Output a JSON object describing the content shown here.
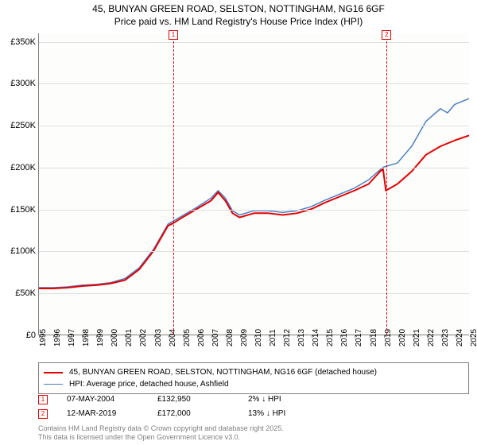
{
  "title": {
    "line1": "45, BUNYAN GREEN ROAD, SELSTON, NOTTINGHAM, NG16 6GF",
    "line2": "Price paid vs. HM Land Registry's House Price Index (HPI)",
    "fontsize": 12,
    "color": "#000000"
  },
  "chart": {
    "type": "line",
    "background_color": "#fdfdfb",
    "grid_color": "#e0e0e0",
    "axis_color": "#808080",
    "x": {
      "min": 1995,
      "max": 2025,
      "ticks": [
        1995,
        1996,
        1997,
        1998,
        1999,
        2000,
        2001,
        2002,
        2003,
        2004,
        2005,
        2006,
        2007,
        2008,
        2009,
        2010,
        2011,
        2012,
        2013,
        2014,
        2015,
        2016,
        2017,
        2018,
        2019,
        2020,
        2021,
        2022,
        2023,
        2024,
        2025
      ],
      "label_fontsize": 10
    },
    "y": {
      "min": 0,
      "max": 360000,
      "ticks": [
        0,
        50000,
        100000,
        150000,
        200000,
        250000,
        300000,
        350000
      ],
      "tick_labels": [
        "£0",
        "£50K",
        "£100K",
        "£150K",
        "£200K",
        "£250K",
        "£300K",
        "£350K"
      ],
      "label_fontsize": 11
    },
    "series": [
      {
        "name": "price_paid",
        "label": "45, BUNYAN GREEN ROAD, SELSTON, NOTTINGHAM, NG16 6GF (detached house)",
        "color": "#e60000",
        "line_width": 2,
        "points": [
          [
            1995,
            55000
          ],
          [
            1996,
            55000
          ],
          [
            1997,
            56000
          ],
          [
            1998,
            58000
          ],
          [
            1999,
            59000
          ],
          [
            2000,
            61000
          ],
          [
            2001,
            65000
          ],
          [
            2002,
            78000
          ],
          [
            2003,
            100000
          ],
          [
            2004,
            130000
          ],
          [
            2004.35,
            132950
          ],
          [
            2005,
            140000
          ],
          [
            2006,
            150000
          ],
          [
            2007,
            160000
          ],
          [
            2007.5,
            170000
          ],
          [
            2008,
            160000
          ],
          [
            2008.5,
            145000
          ],
          [
            2009,
            140000
          ],
          [
            2010,
            145000
          ],
          [
            2011,
            145000
          ],
          [
            2012,
            143000
          ],
          [
            2013,
            145000
          ],
          [
            2014,
            150000
          ],
          [
            2015,
            158000
          ],
          [
            2016,
            165000
          ],
          [
            2017,
            172000
          ],
          [
            2018,
            180000
          ],
          [
            2018.8,
            195000
          ],
          [
            2019,
            198000
          ],
          [
            2019.2,
            172000
          ],
          [
            2020,
            180000
          ],
          [
            2021,
            195000
          ],
          [
            2022,
            215000
          ],
          [
            2023,
            225000
          ],
          [
            2024,
            232000
          ],
          [
            2025,
            238000
          ]
        ]
      },
      {
        "name": "hpi",
        "label": "HPI: Average price, detached house, Ashfield",
        "color": "#4a7ec8",
        "line_width": 1.5,
        "points": [
          [
            1995,
            56000
          ],
          [
            1996,
            56000
          ],
          [
            1997,
            57000
          ],
          [
            1998,
            59000
          ],
          [
            1999,
            60000
          ],
          [
            2000,
            62000
          ],
          [
            2001,
            67000
          ],
          [
            2002,
            80000
          ],
          [
            2003,
            102000
          ],
          [
            2004,
            132000
          ],
          [
            2005,
            142000
          ],
          [
            2006,
            152000
          ],
          [
            2007,
            163000
          ],
          [
            2007.5,
            172000
          ],
          [
            2008,
            163000
          ],
          [
            2008.5,
            148000
          ],
          [
            2009,
            143000
          ],
          [
            2010,
            148000
          ],
          [
            2011,
            148000
          ],
          [
            2012,
            146000
          ],
          [
            2013,
            148000
          ],
          [
            2014,
            153000
          ],
          [
            2015,
            161000
          ],
          [
            2016,
            168000
          ],
          [
            2017,
            175000
          ],
          [
            2018,
            185000
          ],
          [
            2019,
            200000
          ],
          [
            2020,
            205000
          ],
          [
            2021,
            225000
          ],
          [
            2022,
            255000
          ],
          [
            2023,
            270000
          ],
          [
            2023.5,
            265000
          ],
          [
            2024,
            275000
          ],
          [
            2025,
            282000
          ]
        ]
      }
    ],
    "markers": [
      {
        "id": "1",
        "x": 2004.35,
        "color": "#e60000"
      },
      {
        "id": "2",
        "x": 2019.2,
        "color": "#e60000"
      }
    ]
  },
  "legend": {
    "border_color": "#808080",
    "fontsize": 10
  },
  "annotations": [
    {
      "id": "1",
      "color": "#e60000",
      "date": "07-MAY-2004",
      "price": "£132,950",
      "delta": "2% ↓ HPI"
    },
    {
      "id": "2",
      "color": "#e60000",
      "date": "12-MAR-2019",
      "price": "£172,000",
      "delta": "13% ↓ HPI"
    }
  ],
  "footer": {
    "line1": "Contains HM Land Registry data © Crown copyright and database right 2025.",
    "line2": "This data is licensed under the Open Government Licence v3.0.",
    "color": "#808080",
    "fontsize": 9
  }
}
